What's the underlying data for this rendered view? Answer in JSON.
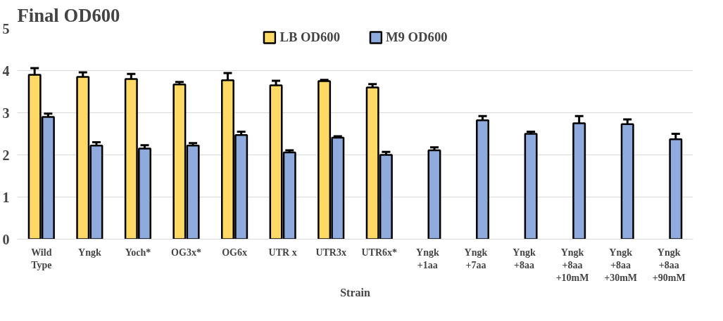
{
  "chart_data": {
    "type": "bar",
    "title": "Final OD600",
    "xlabel": "Strain",
    "categories": [
      "Wild\nType",
      "Yngk",
      "Yoch*",
      "OG3x*",
      "OG6x",
      "UTR x",
      "UTR3x",
      "UTR6x*",
      "Yngk\n+1aa",
      "Yngk\n+7aa",
      "Yngk\n+8aa",
      "Yngk\n+8aa\n+10mM",
      "Yngk\n+8aa\n+30mM",
      "Yngk\n+8aa\n+90mM"
    ],
    "series": [
      {
        "name": "LB OD600",
        "color": "#ffd966",
        "values": [
          3.9,
          3.85,
          3.8,
          3.67,
          3.77,
          3.65,
          3.75,
          3.6,
          null,
          null,
          null,
          null,
          null,
          null
        ],
        "errors": [
          0.16,
          0.11,
          0.12,
          0.06,
          0.17,
          0.11,
          0.03,
          0.08,
          null,
          null,
          null,
          null,
          null,
          null
        ]
      },
      {
        "name": "M9 OD600",
        "color": "#8faadc",
        "values": [
          2.9,
          2.22,
          2.15,
          2.22,
          2.47,
          2.06,
          2.41,
          2.0,
          2.11,
          2.82,
          2.5,
          2.75,
          2.73,
          2.37
        ],
        "errors": [
          0.08,
          0.08,
          0.08,
          0.06,
          0.08,
          0.05,
          0.03,
          0.07,
          0.07,
          0.1,
          0.05,
          0.17,
          0.11,
          0.13
        ]
      }
    ],
    "ylim": [
      0,
      5
    ],
    "yticks": [
      0,
      1,
      2,
      3,
      4,
      5
    ],
    "grid": "y",
    "legend": "top"
  }
}
